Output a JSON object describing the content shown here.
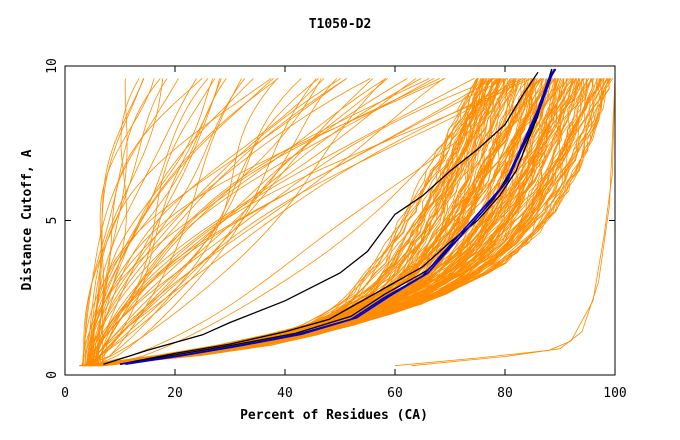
{
  "chart_data": {
    "type": "line",
    "title": "T1050-D2",
    "xlabel": "Percent of Residues (CA)",
    "ylabel": "Distance Cutoff, A",
    "xlim": [
      0,
      100
    ],
    "ylim": [
      0,
      10
    ],
    "x_ticks": [
      0,
      20,
      40,
      60,
      80,
      100
    ],
    "y_ticks": [
      0,
      5,
      10
    ],
    "grid": false,
    "legend": "none",
    "colors": {
      "background_models": "#ff8c00",
      "highlight_black": "#000000",
      "highlight_blue": "#0000cc",
      "axes": "#000000"
    },
    "highlighted_series": [
      {
        "color": "black",
        "points": [
          [
            7,
            0.35
          ],
          [
            15,
            0.8
          ],
          [
            25,
            1.3
          ],
          [
            30,
            1.7
          ],
          [
            40,
            2.4
          ],
          [
            50,
            3.3
          ],
          [
            55,
            4.0
          ],
          [
            60,
            5.2
          ],
          [
            65,
            5.8
          ],
          [
            70,
            6.6
          ],
          [
            75,
            7.3
          ],
          [
            80,
            8.1
          ],
          [
            83,
            9.0
          ],
          [
            86,
            9.8
          ]
        ]
      },
      {
        "color": "black",
        "points": [
          [
            10,
            0.35
          ],
          [
            20,
            0.7
          ],
          [
            30,
            1.0
          ],
          [
            40,
            1.4
          ],
          [
            48,
            1.8
          ],
          [
            52,
            2.2
          ],
          [
            58,
            2.8
          ],
          [
            65,
            3.5
          ],
          [
            70,
            4.3
          ],
          [
            75,
            5.0
          ],
          [
            79,
            5.8
          ],
          [
            82,
            6.6
          ],
          [
            84,
            7.5
          ],
          [
            86,
            8.4
          ],
          [
            87.5,
            9.3
          ],
          [
            88.5,
            9.9
          ]
        ]
      },
      {
        "color": "black",
        "points": [
          [
            10,
            0.35
          ],
          [
            20,
            0.65
          ],
          [
            30,
            0.95
          ],
          [
            42,
            1.35
          ],
          [
            52,
            1.9
          ],
          [
            58,
            2.6
          ],
          [
            66,
            3.4
          ],
          [
            72,
            4.5
          ],
          [
            78,
            5.7
          ],
          [
            82,
            6.9
          ],
          [
            85,
            8.0
          ],
          [
            87,
            9.0
          ],
          [
            88.5,
            9.9
          ]
        ]
      },
      {
        "color": "blue",
        "points": [
          [
            10,
            0.35
          ],
          [
            20,
            0.6
          ],
          [
            30,
            0.9
          ],
          [
            42,
            1.3
          ],
          [
            52,
            1.8
          ],
          [
            58,
            2.5
          ],
          [
            65,
            3.2
          ],
          [
            70,
            4.2
          ],
          [
            75,
            5.2
          ],
          [
            80,
            6.2
          ],
          [
            83,
            7.4
          ],
          [
            86,
            8.6
          ],
          [
            88,
            9.6
          ],
          [
            89,
            9.9
          ]
        ]
      },
      {
        "color": "blue",
        "points": [
          [
            11,
            0.35
          ],
          [
            21,
            0.62
          ],
          [
            31,
            0.92
          ],
          [
            43,
            1.32
          ],
          [
            53,
            1.85
          ],
          [
            59,
            2.55
          ],
          [
            66,
            3.3
          ],
          [
            71,
            4.3
          ],
          [
            76,
            5.3
          ],
          [
            80.5,
            6.3
          ],
          [
            83.5,
            7.5
          ],
          [
            86.5,
            8.7
          ],
          [
            88.5,
            9.7
          ],
          [
            89.2,
            9.9
          ]
        ]
      }
    ],
    "model_envelope": {
      "description_points": "approximate bounding curves of the orange model cloud",
      "steep_group_start_x": [
        4,
        30
      ],
      "dense_group_right_edge": [
        [
          5,
          0.3
        ],
        [
          30,
          0.5
        ],
        [
          60,
          0.7
        ],
        [
          80,
          0.85
        ],
        [
          90,
          1.2
        ],
        [
          95,
          2.5
        ],
        [
          98,
          4.0
        ],
        [
          99,
          6.0
        ],
        [
          100,
          9.6
        ]
      ],
      "low_outlier_series": [
        {
          "points": [
            [
              60,
              0.3
            ],
            [
              75,
              0.55
            ],
            [
              88,
              0.8
            ],
            [
              92,
              1.1
            ],
            [
              96,
              2.4
            ],
            [
              98,
              4.5
            ],
            [
              99.5,
              6.5
            ],
            [
              100,
              9.6
            ]
          ]
        },
        {
          "points": [
            [
              63,
              0.3
            ],
            [
              80,
              0.6
            ],
            [
              90,
              0.85
            ],
            [
              94,
              1.4
            ],
            [
              97,
              3.0
            ],
            [
              99,
              5.5
            ],
            [
              100,
              9.6
            ]
          ]
        }
      ]
    }
  }
}
